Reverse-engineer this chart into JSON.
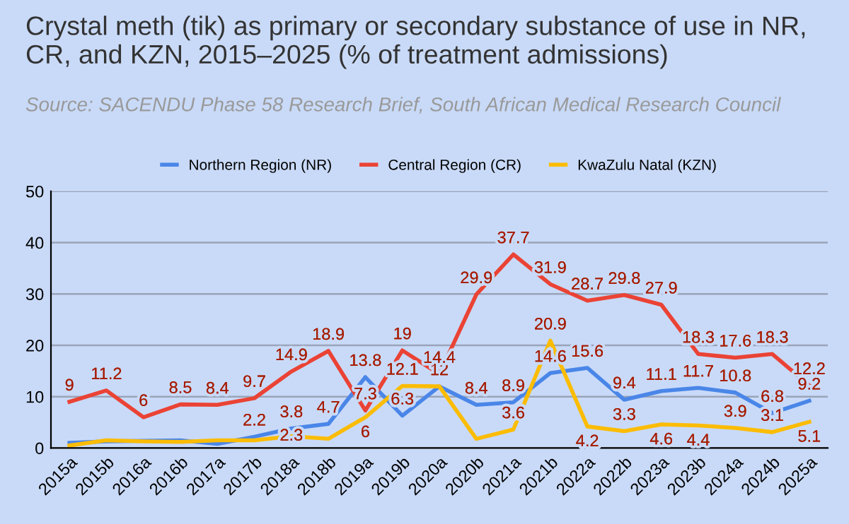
{
  "chart_data": {
    "type": "line",
    "title": "Crystal meth (tik) as primary or secondary substance of use in NR, CR, and KZN, 2015–2025 (% of treatment admissions)",
    "annotations": [
      "Source: SACENDU Phase 58 Research Brief, South African Medical Research Council"
    ],
    "categories": [
      "2015a",
      "2015b",
      "2016a",
      "2016b",
      "2017a",
      "2017b",
      "2018a",
      "2018b",
      "2019a",
      "2019b",
      "2020a",
      "2020b",
      "2021a",
      "2021b",
      "2022a",
      "2022b",
      "2023a",
      "2023b",
      "2024a",
      "2024b",
      "2025a"
    ],
    "series": [
      {
        "name": "Northern Region (NR)",
        "color": "#4a86e8",
        "values": [
          1,
          1.3,
          1.4,
          1.5,
          0.8,
          2.2,
          3.8,
          4.7,
          13.8,
          6.3,
          12,
          8.4,
          8.9,
          14.6,
          15.6,
          9.4,
          11.1,
          11.7,
          10.8,
          6.8,
          9.2
        ],
        "value_labels": [
          null,
          null,
          null,
          null,
          null,
          "2.2",
          "3.8",
          "4.7",
          "13.8",
          "6.3",
          "12",
          "8.4",
          "8.9",
          "14.6",
          "15.6",
          "9.4",
          "11.1",
          "11.7",
          "10.8",
          "6.8",
          "9.2"
        ]
      },
      {
        "name": "Central Region (CR)",
        "color": "#ea4335",
        "values": [
          9,
          11.2,
          6,
          8.5,
          8.4,
          9.7,
          14.9,
          18.9,
          7.3,
          19,
          14.4,
          29.9,
          37.7,
          31.9,
          28.7,
          29.8,
          27.9,
          18.3,
          17.6,
          18.3,
          12.2
        ],
        "value_labels": [
          "9",
          "11.2",
          "6",
          "8.5",
          "8.4",
          "9.7",
          "14.9",
          "18.9",
          "7.3",
          "19",
          "14.4",
          "29.9",
          "37.7",
          "31.9",
          "28.7",
          "29.8",
          "27.9",
          "18.3",
          "17.6",
          "18.3",
          "12.2"
        ]
      },
      {
        "name": "KwaZulu Natal (KZN)",
        "color": "#fbbc04",
        "values": [
          0.5,
          1.5,
          1.3,
          1.2,
          1.5,
          1.5,
          2.3,
          1.8,
          6,
          12.1,
          12,
          1.8,
          3.6,
          20.9,
          4.2,
          3.3,
          4.6,
          4.4,
          3.9,
          3.1,
          5.1
        ],
        "value_labels": [
          null,
          null,
          null,
          null,
          null,
          null,
          "2.3",
          null,
          "6",
          "12.1",
          null,
          null,
          "3.6",
          "20.9",
          "4.2",
          "3.3",
          "4.6",
          "4.4",
          "3.9",
          "3.1",
          "5.1"
        ]
      }
    ],
    "ylim": [
      0,
      50
    ],
    "yticks": [
      0,
      10,
      20,
      30,
      40,
      50
    ],
    "grid": "y",
    "legend": "top",
    "marker": "none",
    "line_style": "solid"
  }
}
